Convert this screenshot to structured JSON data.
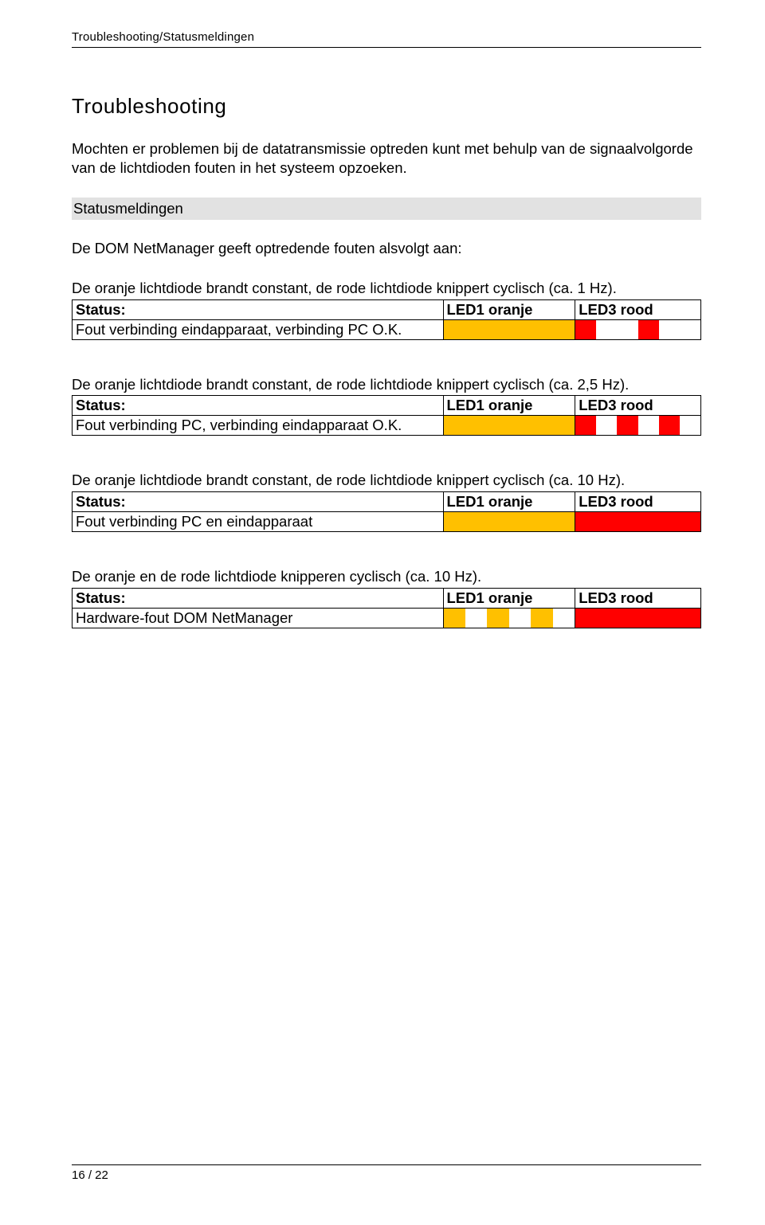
{
  "header": {
    "breadcrumb": "Troubleshooting/Statusmeldingen"
  },
  "title": "Troubleshooting",
  "intro": "Mochten er problemen bij de datatransmissie optreden kunt met behulp van de signaalvolgorde van de lichtdioden fouten in het systeem opzoeken.",
  "subheading": "Statusmeldingen",
  "system_desc": "De DOM NetManager geeft optredende fouten alsvolgt aan:",
  "columns": {
    "status": "Status:",
    "led1": "LED1 oranje",
    "led3": "LED3 rood"
  },
  "blocks": [
    {
      "desc": "De oranje lichtdiode brandt constant, de rode lichtdiode knippert cyclisch (ca. 1 Hz).",
      "row_label": "Fout verbinding eindapparaat, verbinding PC O.K.",
      "led1_pattern": [
        "orange",
        "orange",
        "orange",
        "orange",
        "orange",
        "orange"
      ],
      "led3_pattern": [
        "red",
        "white",
        "white",
        "red",
        "white",
        "white"
      ]
    },
    {
      "desc": "De oranje lichtdiode brandt constant, de rode lichtdiode knippert cyclisch (ca. 2,5 Hz).",
      "row_label": "Fout verbinding PC, verbinding eindapparaat O.K.",
      "led1_pattern": [
        "orange",
        "orange",
        "orange",
        "orange",
        "orange",
        "orange"
      ],
      "led3_pattern": [
        "red",
        "white",
        "red",
        "white",
        "red",
        "white"
      ]
    },
    {
      "desc": "De oranje lichtdiode brandt constant, de rode lichtdiode knippert cyclisch (ca. 10 Hz).",
      "row_label": "Fout verbinding PC en eindapparaat",
      "led1_pattern": [
        "orange",
        "orange",
        "orange",
        "orange",
        "orange",
        "orange"
      ],
      "led3_pattern": [
        "red",
        "red",
        "red",
        "red",
        "red",
        "red"
      ]
    },
    {
      "desc": "De oranje en de rode lichtdiode knipperen cyclisch (ca. 10 Hz).",
      "row_label": "Hardware-fout DOM NetManager",
      "led1_pattern": [
        "orange",
        "white",
        "orange",
        "white",
        "orange",
        "white"
      ],
      "led3_pattern": [
        "red",
        "red",
        "red",
        "red",
        "red",
        "red"
      ]
    }
  ],
  "footer": {
    "page": "16 / 22"
  },
  "colors": {
    "orange": "#ffc000",
    "red": "#ff0000",
    "white": "#ffffff",
    "sub_bg": "#e2e2e2",
    "rule": "#000000"
  }
}
